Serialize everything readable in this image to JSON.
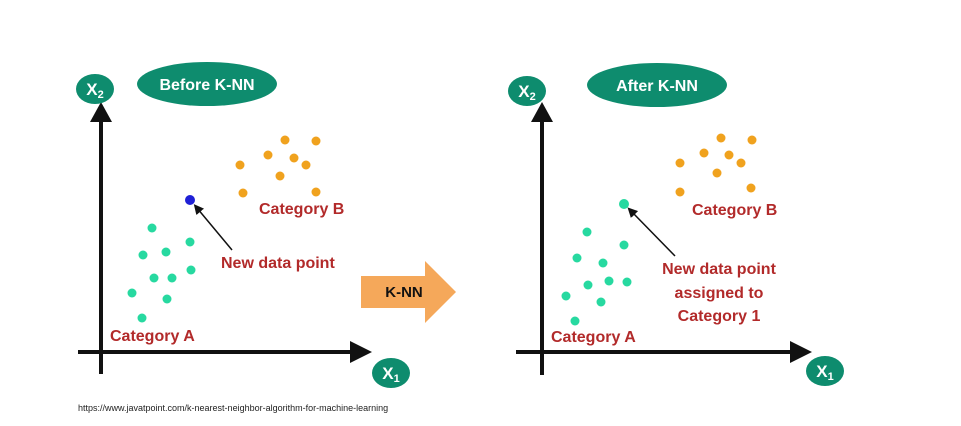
{
  "colors": {
    "teal": "#0e8c6e",
    "category_a": "#27d9a0",
    "category_b": "#f0a21e",
    "new_point": "#1f20d6",
    "label_red": "#b22a2a",
    "arrow_orange": "#f5a85a"
  },
  "before": {
    "pill": "Before K-NN",
    "x_axis": "X",
    "x_axis_sub": "1",
    "y_axis": "X",
    "y_axis_sub": "2",
    "category_a": "Category A",
    "category_b": "Category B",
    "new_point_label": "New data point"
  },
  "middle_arrow": {
    "label": "K-NN"
  },
  "after": {
    "pill": "After K-NN",
    "x_axis": "X",
    "x_axis_sub": "1",
    "y_axis": "X",
    "y_axis_sub": "2",
    "category_a": "Category A",
    "category_b": "Category B",
    "new_point_label_line1": "New data point",
    "new_point_label_line2": "assigned to",
    "new_point_label_line3": "Category 1"
  },
  "source": "https://www.javatpoint.com/k-nearest-neighbor-algorithm-for-machine-learning"
}
